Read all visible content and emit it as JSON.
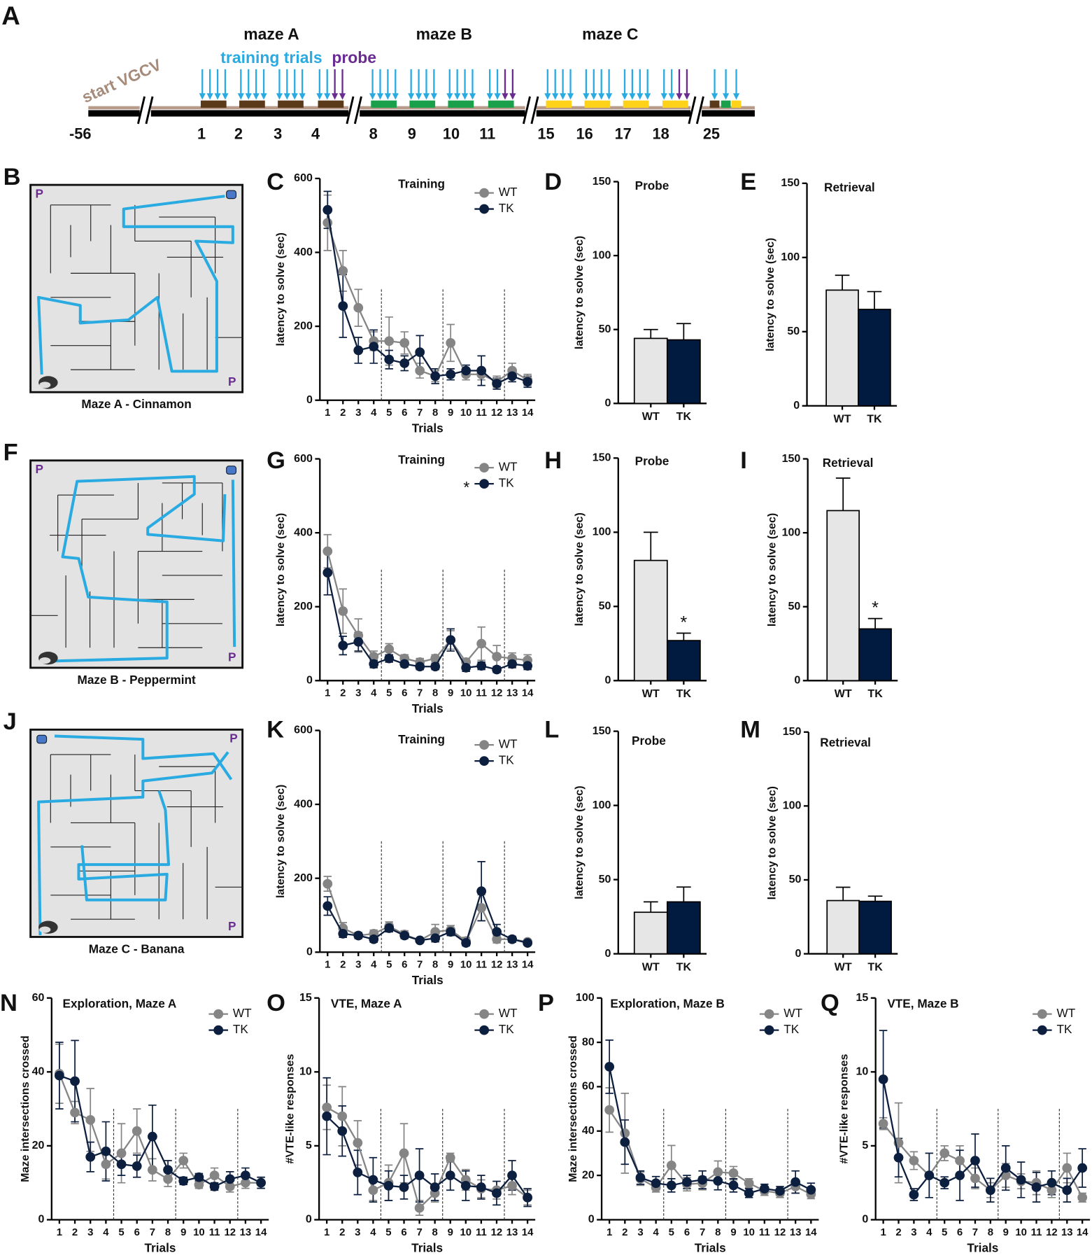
{
  "timeline": {
    "panel": "A",
    "phases": [
      "maze A",
      "maze B",
      "maze C"
    ],
    "training_label": "training trials",
    "probe_label": "probe",
    "start_label": "start VGCV",
    "days": [
      -56,
      1,
      2,
      3,
      4,
      8,
      9,
      10,
      11,
      15,
      16,
      17,
      18,
      25
    ]
  },
  "mazes": [
    {
      "panel": "B",
      "caption": "Maze A - Cinnamon",
      "marker": "P"
    },
    {
      "panel": "F",
      "caption": "Maze B - Peppermint",
      "marker": "P"
    },
    {
      "panel": "J",
      "caption": "Maze C - Banana",
      "marker": "P"
    }
  ],
  "chart_data": [
    {
      "type": "line",
      "panel": "C",
      "title": "Training",
      "xlabel": "Trials",
      "ylabel": "latency to solve (sec)",
      "x": [
        1,
        2,
        3,
        4,
        5,
        6,
        7,
        8,
        9,
        10,
        11,
        12,
        13,
        14
      ],
      "xlim": [
        0.5,
        14.5
      ],
      "xticks": [
        1,
        2,
        3,
        4,
        5,
        6,
        7,
        8,
        9,
        10,
        11,
        12,
        13,
        14
      ],
      "ylim": [
        0,
        600
      ],
      "yticks": [
        0,
        200,
        400,
        600
      ],
      "legend": "upper right",
      "series": [
        {
          "name": "WT",
          "color": "#858585",
          "values": [
            480,
            350,
            250,
            160,
            160,
            155,
            80,
            65,
            155,
            70,
            70,
            50,
            80,
            55
          ],
          "errors": [
            75,
            55,
            50,
            25,
            65,
            30,
            20,
            15,
            50,
            15,
            15,
            15,
            20,
            15
          ]
        },
        {
          "name": "TK",
          "color": "#0d1f3f",
          "values": [
            515,
            255,
            135,
            145,
            110,
            100,
            130,
            65,
            70,
            80,
            80,
            45,
            65,
            50
          ],
          "errors": [
            50,
            85,
            35,
            45,
            25,
            20,
            45,
            20,
            15,
            15,
            40,
            15,
            15,
            15
          ]
        }
      ]
    },
    {
      "type": "bar",
      "panel": "D",
      "title": "Probe",
      "ylabel": "latency to solve (sec)",
      "categories": [
        "WT",
        "TK"
      ],
      "colors": [
        "#e6e6e6",
        "#001a40"
      ],
      "values": [
        44,
        43
      ],
      "errors": [
        6,
        11
      ],
      "ylim": [
        0,
        150
      ],
      "yticks": [
        0,
        50,
        100,
        150
      ]
    },
    {
      "type": "bar",
      "panel": "E",
      "title": "Retrieval",
      "ylabel": "latency to solve (sec)",
      "categories": [
        "WT",
        "TK"
      ],
      "colors": [
        "#e6e6e6",
        "#001a40"
      ],
      "values": [
        78,
        65
      ],
      "errors": [
        10,
        12
      ],
      "ylim": [
        0,
        150
      ],
      "yticks": [
        0,
        50,
        100,
        150
      ]
    },
    {
      "type": "line",
      "panel": "G",
      "title": "Training",
      "xlabel": "Trials",
      "ylabel": "latency to solve (sec)",
      "annotation": "*",
      "x": [
        1,
        2,
        3,
        4,
        5,
        6,
        7,
        8,
        9,
        10,
        11,
        12,
        13,
        14
      ],
      "xlim": [
        0.5,
        14.5
      ],
      "xticks": [
        1,
        2,
        3,
        4,
        5,
        6,
        7,
        8,
        9,
        10,
        11,
        12,
        13,
        14
      ],
      "ylim": [
        0,
        600
      ],
      "yticks": [
        0,
        200,
        400,
        600
      ],
      "legend": "upper right",
      "series": [
        {
          "name": "WT",
          "color": "#858585",
          "values": [
            350,
            188,
            122,
            65,
            85,
            60,
            50,
            60,
            110,
            50,
            100,
            65,
            60,
            55
          ],
          "errors": [
            45,
            60,
            45,
            15,
            15,
            10,
            10,
            10,
            25,
            10,
            45,
            30,
            15,
            15
          ]
        },
        {
          "name": "TK",
          "color": "#0d1f3f",
          "values": [
            292,
            95,
            105,
            45,
            60,
            45,
            38,
            38,
            110,
            35,
            40,
            30,
            45,
            40
          ],
          "errors": [
            60,
            25,
            25,
            10,
            10,
            8,
            8,
            8,
            30,
            10,
            10,
            8,
            10,
            10
          ]
        }
      ]
    },
    {
      "type": "bar",
      "panel": "H",
      "title": "Probe",
      "ylabel": "latency to solve (sec)",
      "annotation": "*",
      "categories": [
        "WT",
        "TK"
      ],
      "colors": [
        "#e6e6e6",
        "#001a40"
      ],
      "values": [
        81,
        27
      ],
      "errors": [
        19,
        5
      ],
      "ylim": [
        0,
        150
      ],
      "yticks": [
        0,
        50,
        100,
        150
      ]
    },
    {
      "type": "bar",
      "panel": "I",
      "title": "Retrieval",
      "ylabel": "latency to solve (sec)",
      "annotation": "*",
      "categories": [
        "WT",
        "TK"
      ],
      "colors": [
        "#e6e6e6",
        "#001a40"
      ],
      "values": [
        115,
        35
      ],
      "errors": [
        22,
        7
      ],
      "ylim": [
        0,
        150
      ],
      "yticks": [
        0,
        50,
        100,
        150
      ]
    },
    {
      "type": "line",
      "panel": "K",
      "title": "Training",
      "xlabel": "Trials",
      "ylabel": "latency to solve (sec)",
      "x": [
        1,
        2,
        3,
        4,
        5,
        6,
        7,
        8,
        9,
        10,
        11,
        12,
        13,
        14
      ],
      "xlim": [
        0.5,
        14.5
      ],
      "xticks": [
        1,
        2,
        3,
        4,
        5,
        6,
        7,
        8,
        9,
        10,
        11,
        12,
        13,
        14
      ],
      "ylim": [
        0,
        600
      ],
      "yticks": [
        0,
        200,
        400,
        600
      ],
      "legend": "upper right",
      "series": [
        {
          "name": "WT",
          "color": "#858585",
          "values": [
            185,
            65,
            45,
            50,
            70,
            48,
            32,
            55,
            60,
            30,
            120,
            35,
            35,
            28
          ],
          "errors": [
            20,
            15,
            8,
            10,
            12,
            10,
            5,
            20,
            12,
            10,
            35,
            10,
            8,
            6
          ]
        },
        {
          "name": "TK",
          "color": "#0d1f3f",
          "values": [
            125,
            50,
            45,
            35,
            65,
            45,
            32,
            38,
            55,
            25,
            165,
            55,
            35,
            25
          ],
          "errors": [
            25,
            10,
            8,
            8,
            10,
            8,
            5,
            10,
            10,
            8,
            80,
            20,
            8,
            6
          ]
        }
      ]
    },
    {
      "type": "bar",
      "panel": "L",
      "title": "Probe",
      "ylabel": "latency to solve (sec)",
      "categories": [
        "WT",
        "TK"
      ],
      "colors": [
        "#e6e6e6",
        "#001a40"
      ],
      "values": [
        28,
        35
      ],
      "errors": [
        7,
        10
      ],
      "ylim": [
        0,
        150
      ],
      "yticks": [
        0,
        50,
        100,
        150
      ]
    },
    {
      "type": "bar",
      "panel": "M",
      "title": "Retrieval",
      "ylabel": "latency to solve (sec)",
      "categories": [
        "WT",
        "TK"
      ],
      "colors": [
        "#e6e6e6",
        "#001a40"
      ],
      "values": [
        36,
        35.5
      ],
      "errors": [
        9,
        3.5
      ],
      "ylim": [
        0,
        150
      ],
      "yticks": [
        0,
        50,
        100,
        150
      ]
    },
    {
      "type": "line",
      "panel": "N",
      "title": "Exploration, Maze A",
      "xlabel": "Trials",
      "ylabel": "Maze intersections crossed",
      "x": [
        1,
        2,
        3,
        4,
        5,
        6,
        7,
        8,
        9,
        10,
        11,
        12,
        13,
        14
      ],
      "xlim": [
        0.5,
        14.5
      ],
      "xticks": [
        1,
        2,
        3,
        4,
        5,
        6,
        7,
        8,
        9,
        10,
        11,
        12,
        13,
        14
      ],
      "ylim": [
        0,
        60
      ],
      "yticks": [
        0,
        20,
        40,
        60
      ],
      "legend": "upper right",
      "series": [
        {
          "name": "WT",
          "color": "#858585",
          "values": [
            39.5,
            29,
            27,
            15,
            18,
            24,
            13.5,
            11,
            16,
            9.5,
            12,
            9,
            10,
            10
          ],
          "errors": [
            8,
            3,
            8.5,
            4,
            8,
            6,
            3,
            2,
            2,
            1,
            2,
            1.5,
            1.5,
            1.5
          ]
        },
        {
          "name": "TK",
          "color": "#0d1f3f",
          "values": [
            39,
            37.5,
            17,
            18.5,
            15,
            14.5,
            22.5,
            13.5,
            10.5,
            11.5,
            9,
            11,
            12,
            10
          ],
          "errors": [
            9,
            11,
            4,
            8,
            3,
            3,
            8.5,
            2.5,
            1,
            1,
            1,
            2,
            2,
            1.5
          ]
        }
      ]
    },
    {
      "type": "line",
      "panel": "O",
      "title": "VTE, Maze A",
      "xlabel": "Trials",
      "ylabel": "#VTE-like responses",
      "x": [
        1,
        2,
        3,
        4,
        5,
        6,
        7,
        8,
        9,
        10,
        11,
        12,
        13,
        14
      ],
      "xlim": [
        0.5,
        14.5
      ],
      "xticks": [
        1,
        2,
        3,
        4,
        5,
        6,
        7,
        8,
        9,
        10,
        11,
        12,
        13,
        14
      ],
      "ylim": [
        0,
        15
      ],
      "yticks": [
        0,
        5,
        10,
        15
      ],
      "legend": "upper right",
      "series": [
        {
          "name": "WT",
          "color": "#858585",
          "values": [
            7.6,
            7,
            5.2,
            2,
            2.5,
            4.5,
            0.8,
            1.8,
            4.2,
            2.7,
            2.1,
            2,
            2.3,
            1.5
          ],
          "errors": [
            1.5,
            2,
            1.5,
            0.7,
            1.2,
            2,
            0.5,
            0.6,
            0.3,
            0.7,
            0.6,
            0.6,
            0.6,
            0.5
          ]
        },
        {
          "name": "TK",
          "color": "#0d1f3f",
          "values": [
            7,
            6,
            3.2,
            2.7,
            2.3,
            2.2,
            3,
            2.2,
            3,
            2.3,
            2.2,
            1.8,
            3,
            1.5
          ],
          "errors": [
            2.6,
            1.7,
            1.5,
            1.5,
            1,
            0.8,
            1.8,
            0.9,
            1,
            1,
            0.8,
            0.8,
            1,
            0.6
          ]
        }
      ]
    },
    {
      "type": "line",
      "panel": "P",
      "title": "Exploration, Maze B",
      "xlabel": "Trials",
      "ylabel": "Maze intersections crossed",
      "x": [
        1,
        2,
        3,
        4,
        5,
        6,
        7,
        8,
        9,
        10,
        11,
        12,
        13,
        14
      ],
      "xlim": [
        0.5,
        14.5
      ],
      "xticks": [
        1,
        2,
        3,
        4,
        5,
        6,
        7,
        8,
        9,
        10,
        11,
        12,
        13,
        14
      ],
      "ylim": [
        0,
        100
      ],
      "yticks": [
        0,
        20,
        40,
        60,
        80,
        100
      ],
      "legend": "upper right",
      "series": [
        {
          "name": "WT",
          "color": "#858585",
          "values": [
            49.5,
            39,
            18.5,
            14.5,
            24.5,
            16,
            16.5,
            21.5,
            21,
            16.5,
            13,
            12,
            15,
            11.5
          ],
          "errors": [
            10,
            18,
            3,
            2,
            9,
            3,
            3,
            5,
            3,
            2,
            2,
            2,
            3,
            2
          ]
        },
        {
          "name": "TK",
          "color": "#0d1f3f",
          "values": [
            69,
            35,
            19,
            16.5,
            15.5,
            17,
            18,
            17.5,
            15.5,
            12,
            14,
            13,
            17,
            13.5
          ],
          "errors": [
            12,
            10,
            3,
            3,
            3,
            3,
            4,
            4,
            3,
            2,
            2,
            2,
            5,
            3
          ]
        }
      ]
    },
    {
      "type": "line",
      "panel": "Q",
      "title": "VTE, Maze B",
      "xlabel": "Trials",
      "ylabel": "#VTE-like responses",
      "x": [
        1,
        2,
        3,
        4,
        5,
        6,
        7,
        8,
        9,
        10,
        11,
        12,
        13,
        14
      ],
      "xlim": [
        0.5,
        14.5
      ],
      "xticks": [
        1,
        2,
        3,
        4,
        5,
        6,
        7,
        8,
        9,
        10,
        11,
        12,
        13,
        14
      ],
      "ylim": [
        0,
        15
      ],
      "yticks": [
        0,
        5,
        10,
        15
      ],
      "legend": "upper right",
      "series": [
        {
          "name": "WT",
          "color": "#858585",
          "values": [
            6.5,
            5.2,
            4,
            3,
            4.5,
            4,
            2.8,
            2,
            3,
            2.6,
            2.5,
            2,
            3.5,
            1.5
          ],
          "errors": [
            0.4,
            2.7,
            0.6,
            1.5,
            0.5,
            1,
            0.7,
            0.5,
            0.8,
            0.5,
            0.8,
            0.5,
            1,
            0.3
          ]
        },
        {
          "name": "TK",
          "color": "#0d1f3f",
          "values": [
            9.5,
            4.2,
            1.7,
            3,
            2.5,
            3,
            4,
            2,
            3.5,
            2.7,
            2.2,
            2.5,
            2,
            3.5
          ],
          "errors": [
            3.3,
            1.3,
            0.4,
            1.5,
            0.4,
            1.7,
            1.8,
            0.8,
            1.5,
            1.2,
            1,
            0.8,
            0.8,
            1.3
          ]
        }
      ]
    }
  ]
}
